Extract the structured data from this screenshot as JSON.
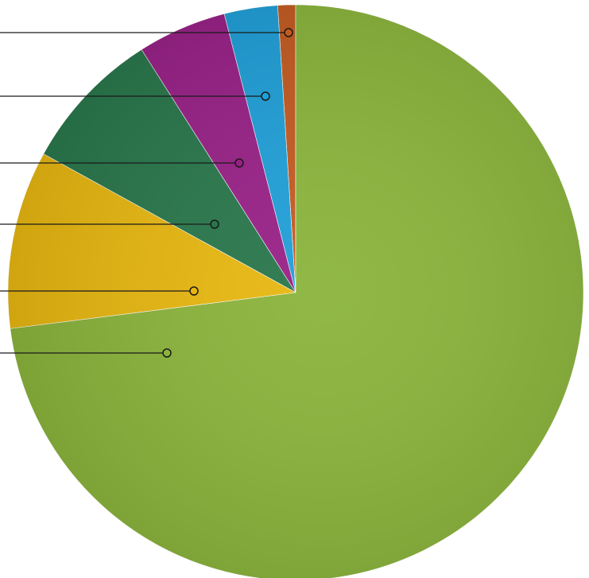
{
  "chart_data": {
    "type": "pie",
    "categories": [
      null,
      null,
      null,
      null,
      null,
      null
    ],
    "values": [
      1,
      3,
      5,
      8,
      10,
      73
    ],
    "colors": [
      "#c35a1f",
      "#1e9fd8",
      "#981f86",
      "#27764a",
      "#e8b70e",
      "#8ab43a"
    ]
  }
}
